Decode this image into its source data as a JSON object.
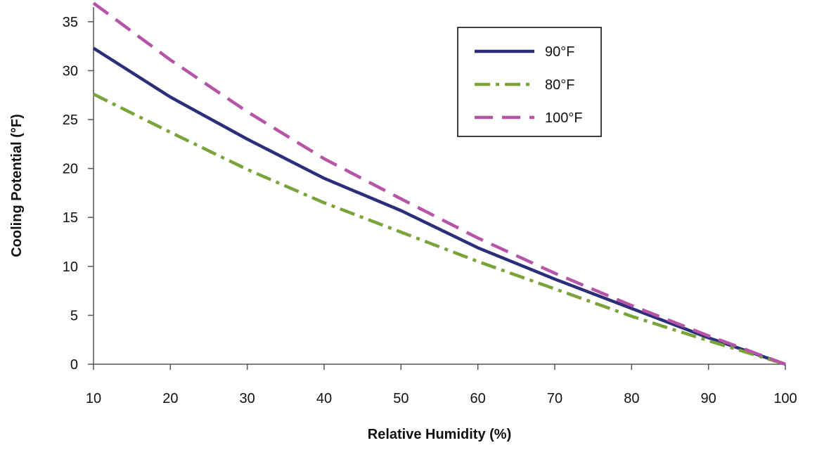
{
  "chart_data": {
    "type": "line",
    "title": "",
    "xlabel": "Relative Humidity (%)",
    "ylabel": "Cooling Potential (°F)",
    "x": [
      10,
      20,
      30,
      40,
      50,
      60,
      70,
      80,
      90,
      100
    ],
    "x_ticks": [
      "10",
      "20",
      "30",
      "40",
      "50",
      "60",
      "70",
      "80",
      "90",
      "100"
    ],
    "y_ticks": [
      "0",
      "5",
      "10",
      "15",
      "20",
      "25",
      "30",
      "35"
    ],
    "xlim": [
      10,
      100
    ],
    "ylim": [
      0,
      36.5
    ],
    "grid": false,
    "legend_position": "top-right",
    "series": [
      {
        "name": "90°F",
        "color": "#2b2f7a",
        "style": "solid",
        "values": [
          32.3,
          27.3,
          23.0,
          19.0,
          15.7,
          11.9,
          8.7,
          5.7,
          2.7,
          0
        ]
      },
      {
        "name": "80°F",
        "color": "#7aa339",
        "style": "dashdot",
        "values": [
          27.6,
          23.7,
          19.9,
          16.5,
          13.5,
          10.5,
          7.7,
          4.9,
          2.4,
          0
        ]
      },
      {
        "name": "100°F",
        "color": "#b655a7",
        "style": "dashed",
        "values": [
          36.9,
          31.1,
          25.8,
          21.0,
          16.9,
          12.9,
          9.3,
          6.0,
          2.9,
          0
        ]
      }
    ]
  }
}
